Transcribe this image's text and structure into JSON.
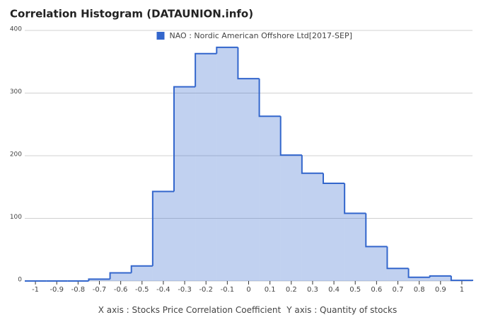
{
  "chart_data": {
    "type": "histogram",
    "title": "Correlation Histogram (DATAUNION.info)",
    "series": [
      {
        "name": "NAO : Nordic American Offshore Ltd[2017-SEP]",
        "color": "#3366cc",
        "values": [
          0,
          0,
          0,
          3,
          13,
          24,
          143,
          310,
          363,
          373,
          323,
          263,
          201,
          172,
          156,
          108,
          55,
          20,
          6,
          8,
          1
        ]
      }
    ],
    "bins": [
      -1.05,
      -0.95,
      -0.85,
      -0.75,
      -0.65,
      -0.55,
      -0.45,
      -0.35,
      -0.25,
      -0.15,
      -0.05,
      0.05,
      0.15,
      0.25,
      0.35,
      0.45,
      0.55,
      0.65,
      0.75,
      0.85,
      0.95,
      1.05
    ],
    "xlim": [
      -1.05,
      1.05
    ],
    "ylim": [
      0,
      400
    ],
    "xticks": [
      -1,
      -0.9,
      -0.8,
      -0.7,
      -0.6,
      -0.5,
      -0.4,
      -0.3,
      -0.2,
      -0.1,
      0,
      0.1,
      0.2,
      0.3,
      0.4,
      0.5,
      0.6,
      0.7,
      0.8,
      0.9,
      1
    ],
    "yticks": [
      0,
      100,
      200,
      300,
      400
    ],
    "grid": true,
    "x_label": "X axis : Stocks Price Correlation Coefficient",
    "y_label": "Y axis : Quantity of stocks",
    "legend": "top"
  }
}
